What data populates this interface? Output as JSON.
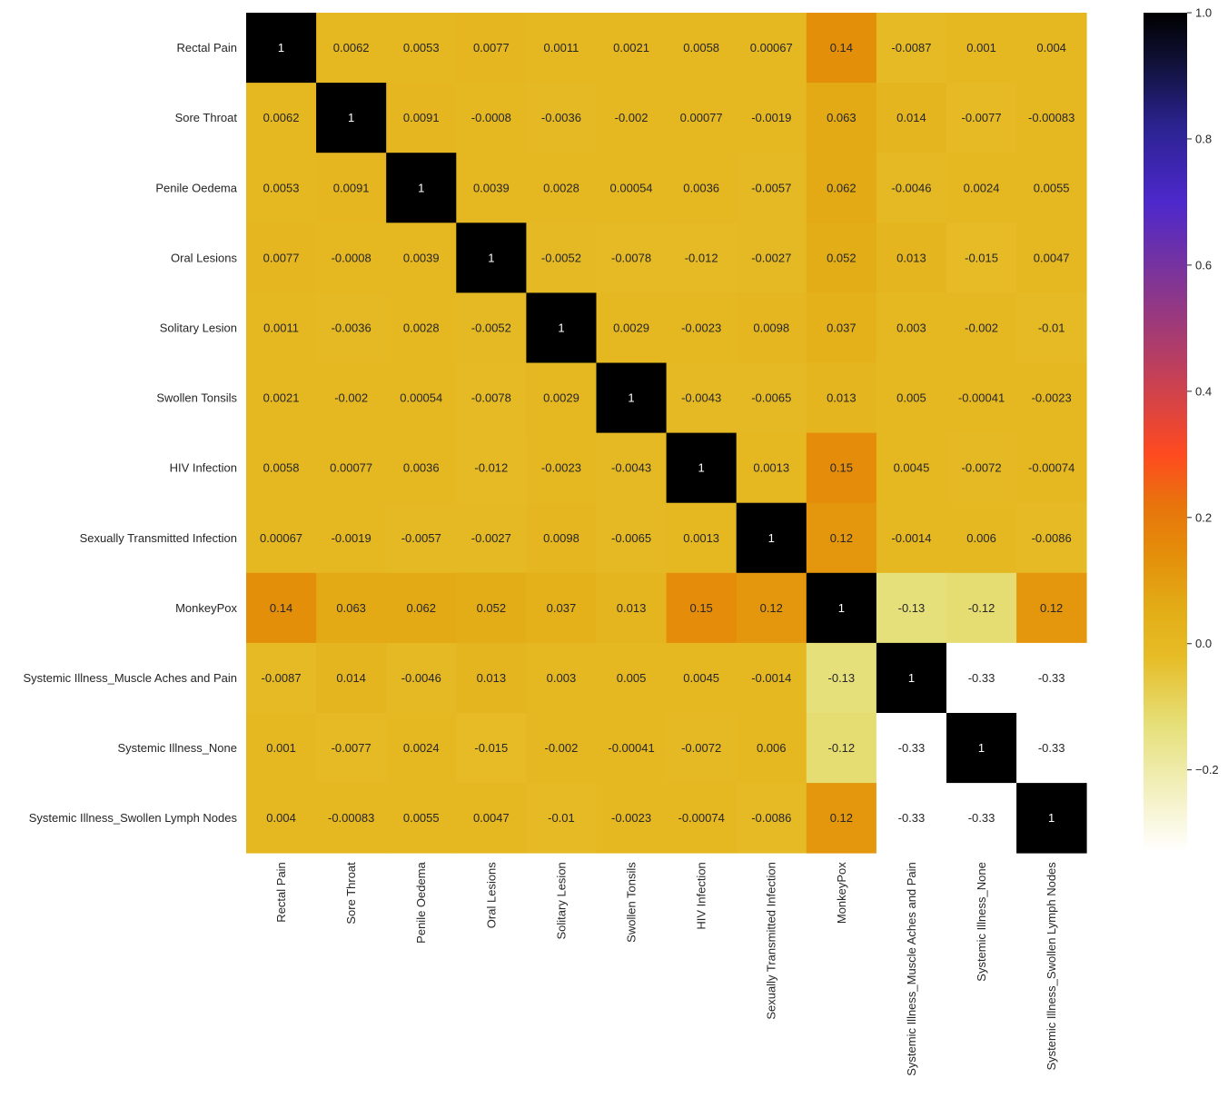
{
  "chart_data": {
    "type": "heatmap",
    "title": "",
    "xlabel": "",
    "ylabel": "",
    "labels": [
      "Rectal Pain",
      "Sore Throat",
      "Penile Oedema",
      "Oral Lesions",
      "Solitary Lesion",
      "Swollen Tonsils",
      "HIV Infection",
      "Sexually Transmitted Infection",
      "MonkeyPox",
      "Systemic Illness_Muscle Aches and Pain",
      "Systemic Illness_None",
      "Systemic Illness_Swollen Lymph Nodes"
    ],
    "matrix": [
      [
        "1",
        "0.0062",
        "0.0053",
        "0.0077",
        "0.0011",
        "0.0021",
        "0.0058",
        "0.00067",
        "0.14",
        "-0.0087",
        "0.001",
        "0.004"
      ],
      [
        "0.0062",
        "1",
        "0.0091",
        "-0.0008",
        "-0.0036",
        "-0.002",
        "0.00077",
        "-0.0019",
        "0.063",
        "0.014",
        "-0.0077",
        "-0.00083"
      ],
      [
        "0.0053",
        "0.0091",
        "1",
        "0.0039",
        "0.0028",
        "0.00054",
        "0.0036",
        "-0.0057",
        "0.062",
        "-0.0046",
        "0.0024",
        "0.0055"
      ],
      [
        "0.0077",
        "-0.0008",
        "0.0039",
        "1",
        "-0.0052",
        "-0.0078",
        "-0.012",
        "-0.0027",
        "0.052",
        "0.013",
        "-0.015",
        "0.0047"
      ],
      [
        "0.0011",
        "-0.0036",
        "0.0028",
        "-0.0052",
        "1",
        "0.0029",
        "-0.0023",
        "0.0098",
        "0.037",
        "0.003",
        "-0.002",
        "-0.01"
      ],
      [
        "0.0021",
        "-0.002",
        "0.00054",
        "-0.0078",
        "0.0029",
        "1",
        "-0.0043",
        "-0.0065",
        "0.013",
        "0.005",
        "-0.00041",
        "-0.0023"
      ],
      [
        "0.0058",
        "0.00077",
        "0.0036",
        "-0.012",
        "-0.0023",
        "-0.0043",
        "1",
        "0.0013",
        "0.15",
        "0.0045",
        "-0.0072",
        "-0.00074"
      ],
      [
        "0.00067",
        "-0.0019",
        "-0.0057",
        "-0.0027",
        "0.0098",
        "-0.0065",
        "0.0013",
        "1",
        "0.12",
        "-0.0014",
        "0.006",
        "-0.0086"
      ],
      [
        "0.14",
        "0.063",
        "0.062",
        "0.052",
        "0.037",
        "0.013",
        "0.15",
        "0.12",
        "1",
        "-0.13",
        "-0.12",
        "0.12"
      ],
      [
        "-0.0087",
        "0.014",
        "-0.0046",
        "0.013",
        "0.003",
        "0.005",
        "0.0045",
        "-0.0014",
        "-0.13",
        "1",
        "-0.33",
        "-0.33"
      ],
      [
        "0.001",
        "-0.0077",
        "0.0024",
        "-0.015",
        "-0.002",
        "-0.00041",
        "-0.0072",
        "0.006",
        "-0.12",
        "-0.33",
        "1",
        "-0.33"
      ],
      [
        "0.004",
        "-0.00083",
        "0.0055",
        "0.0047",
        "-0.01",
        "-0.0023",
        "-0.00074",
        "-0.0086",
        "0.12",
        "-0.33",
        "-0.33",
        "1"
      ]
    ],
    "colorbar": {
      "vmin": -0.33,
      "vmax": 1.0,
      "ticks": [
        "-0.2",
        "0.0",
        "0.2",
        "0.4",
        "0.6",
        "0.8",
        "1.0"
      ],
      "colormap": "CMRmap_r",
      "stops": [
        {
          "v": -0.33,
          "color": "#ffffff"
        },
        {
          "v": -0.13,
          "color": "#e6e07a"
        },
        {
          "v": -0.02,
          "color": "#e6bc26"
        },
        {
          "v": 0.05,
          "color": "#e3ae18"
        },
        {
          "v": 0.14,
          "color": "#e48f0a"
        },
        {
          "v": 0.22,
          "color": "#e8740c"
        },
        {
          "v": 0.3,
          "color": "#ff4a20"
        },
        {
          "v": 0.45,
          "color": "#b83e62"
        },
        {
          "v": 0.6,
          "color": "#7633a0"
        },
        {
          "v": 0.7,
          "color": "#4d28cc"
        },
        {
          "v": 0.82,
          "color": "#2b2390"
        },
        {
          "v": 0.92,
          "color": "#11113a"
        },
        {
          "v": 1.0,
          "color": "#000000"
        }
      ]
    },
    "annot_light_color": "#ffffff",
    "annot_dark_color": "#262626"
  }
}
